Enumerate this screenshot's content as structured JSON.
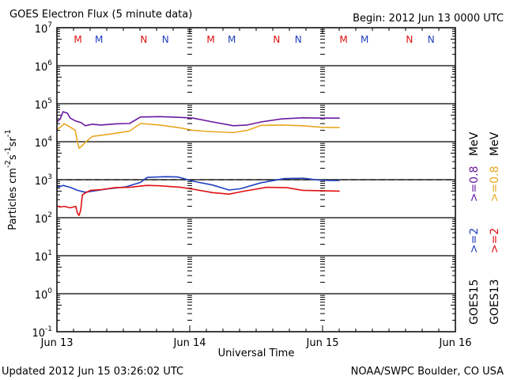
{
  "header": {
    "title": "GOES Electron Flux (5 minute data)",
    "begin": "Begin: 2012 Jun 13 0000 UTC"
  },
  "footer": {
    "updated": "Updated 2012 Jun 15 03:26:02 UTC",
    "credit": "NOAA/SWPC Boulder, CO USA"
  },
  "colors": {
    "goes15_2mev": "#1f3fbf",
    "goes15_08mev": "#6a1aa0",
    "goes13_2mev": "#e01010",
    "goes13_08mev": "#e8a820",
    "marker_m": "#e01010",
    "marker_n_red": "#e01010",
    "marker_m_blue": "#1f3fbf",
    "marker_n_blue": "#1f3fbf"
  },
  "chart_data": {
    "type": "line",
    "title": "GOES Electron Flux (5 minute data)",
    "xlabel": "Universal Time",
    "ylabel": "Particles cm-2 s-1 sr-1",
    "ylabel_parts": {
      "base": "Particles cm",
      "e1": "-2",
      "mid1": "s",
      "e2": "-1",
      "mid2": "sr",
      "e3": "-1"
    },
    "yscale": "log",
    "ylim_exp": [
      -1,
      7
    ],
    "y_ticks": [
      {
        "base": "10",
        "exp": "7"
      },
      {
        "base": "10",
        "exp": "6"
      },
      {
        "base": "10",
        "exp": "5"
      },
      {
        "base": "10",
        "exp": "4"
      },
      {
        "base": "10",
        "exp": "3"
      },
      {
        "base": "10",
        "exp": "2"
      },
      {
        "base": "10",
        "exp": "1"
      },
      {
        "base": "10",
        "exp": "0"
      },
      {
        "base": "10",
        "exp": "-1"
      }
    ],
    "x_range_hours": [
      0,
      72
    ],
    "x_ticks": [
      {
        "label": "Jun 13",
        "hour": 0
      },
      {
        "label": "Jun 14",
        "hour": 24
      },
      {
        "label": "Jun 15",
        "hour": 48
      },
      {
        "label": "Jun 16",
        "hour": 72
      }
    ],
    "threshold_line": {
      "value": 1000,
      "style": "dashed"
    },
    "grid": "horizontal at each decade",
    "legend_position": "right (vertical text)",
    "legend": [
      {
        "group": "GOES15",
        "entries": [
          {
            "label": ">=2",
            "color_key": "goes15_2mev"
          },
          {
            "label": ">=0.8",
            "color_key": "goes15_08mev"
          },
          {
            "label": "MeV"
          }
        ]
      },
      {
        "group": "GOES13",
        "entries": [
          {
            "label": ">=2",
            "color_key": "goes13_2mev"
          },
          {
            "label": ">=0.8",
            "color_key": "goes13_08mev"
          },
          {
            "label": "MeV"
          }
        ]
      }
    ],
    "markers": [
      {
        "label": "M",
        "hour": 3.8,
        "color_key": "marker_m"
      },
      {
        "label": "M",
        "hour": 7.6,
        "color_key": "marker_m_blue"
      },
      {
        "label": "N",
        "hour": 15.7,
        "color_key": "marker_n_red"
      },
      {
        "label": "N",
        "hour": 19.6,
        "color_key": "marker_n_blue"
      },
      {
        "label": "M",
        "hour": 27.8,
        "color_key": "marker_m"
      },
      {
        "label": "M",
        "hour": 31.6,
        "color_key": "marker_m_blue"
      },
      {
        "label": "N",
        "hour": 39.7,
        "color_key": "marker_n_red"
      },
      {
        "label": "N",
        "hour": 43.6,
        "color_key": "marker_n_blue"
      },
      {
        "label": "M",
        "hour": 51.8,
        "color_key": "marker_m"
      },
      {
        "label": "M",
        "hour": 55.6,
        "color_key": "marker_m_blue"
      },
      {
        "label": "N",
        "hour": 63.7,
        "color_key": "marker_n_red"
      },
      {
        "label": "N",
        "hour": 67.6,
        "color_key": "marker_n_blue"
      }
    ],
    "series": [
      {
        "name": "GOES15 >=0.8 MeV",
        "color_key": "goes15_08mev",
        "hours": [
          0,
          0.6,
          1.1,
          1.9,
          2.4,
          3.3,
          4.4,
          5.1,
          6.4,
          7.9,
          10.7,
          13.1,
          15.1,
          18.6,
          22.4,
          24.6,
          28.1,
          31.9,
          34.4,
          36.9,
          40.6,
          44.4,
          47.9,
          51.1
        ],
        "log10": [
          4.52,
          4.6,
          4.79,
          4.75,
          4.62,
          4.55,
          4.5,
          4.42,
          4.46,
          4.44,
          4.47,
          4.48,
          4.65,
          4.66,
          4.64,
          4.62,
          4.52,
          4.42,
          4.44,
          4.52,
          4.6,
          4.63,
          4.62,
          4.62
        ]
      },
      {
        "name": "GOES13 >=0.8 MeV",
        "color_key": "goes13_08mev",
        "hours": [
          0,
          0.6,
          1.3,
          1.9,
          3.3,
          3.7,
          4.0,
          4.4,
          5.1,
          6.4,
          9.6,
          13.1,
          15.1,
          18.6,
          22.4,
          24.6,
          27.1,
          31.9,
          34.4,
          36.9,
          40.6,
          44.4,
          47.9,
          51.1
        ],
        "log10": [
          4.33,
          4.38,
          4.47,
          4.43,
          4.3,
          4.0,
          3.83,
          3.87,
          3.98,
          4.14,
          4.2,
          4.28,
          4.48,
          4.44,
          4.36,
          4.3,
          4.27,
          4.24,
          4.3,
          4.43,
          4.44,
          4.42,
          4.38,
          4.37
        ]
      },
      {
        "name": "GOES15 >=2 MeV",
        "color_key": "goes15_2mev",
        "hours": [
          0,
          0.6,
          1.1,
          2.4,
          3.7,
          5.1,
          6.9,
          9.3,
          12.4,
          15.1,
          16.3,
          19.6,
          21.9,
          24.6,
          28.1,
          31.1,
          33.1,
          36.9,
          41.1,
          44.4,
          47.4,
          49.3,
          51.1
        ],
        "log10": [
          2.81,
          2.82,
          2.85,
          2.8,
          2.72,
          2.67,
          2.71,
          2.76,
          2.81,
          2.93,
          3.06,
          3.08,
          3.07,
          2.96,
          2.86,
          2.73,
          2.76,
          2.92,
          3.03,
          3.04,
          2.99,
          2.98,
          2.98
        ]
      },
      {
        "name": "GOES13 >=2 MeV",
        "color_key": "goes13_2mev",
        "hours": [
          0,
          0.6,
          1.3,
          2.4,
          3.4,
          3.7,
          4.0,
          4.3,
          4.6,
          5.1,
          6.1,
          8.1,
          10.4,
          13.1,
          16.3,
          18.6,
          22.4,
          24.6,
          28.1,
          31.1,
          33.9,
          37.9,
          41.6,
          44.4,
          47.9,
          51.1
        ],
        "log10": [
          2.31,
          2.28,
          2.3,
          2.26,
          2.3,
          2.12,
          2.06,
          2.2,
          2.6,
          2.65,
          2.72,
          2.74,
          2.79,
          2.8,
          2.85,
          2.84,
          2.8,
          2.75,
          2.66,
          2.62,
          2.7,
          2.8,
          2.79,
          2.72,
          2.71,
          2.7
        ]
      }
    ]
  }
}
